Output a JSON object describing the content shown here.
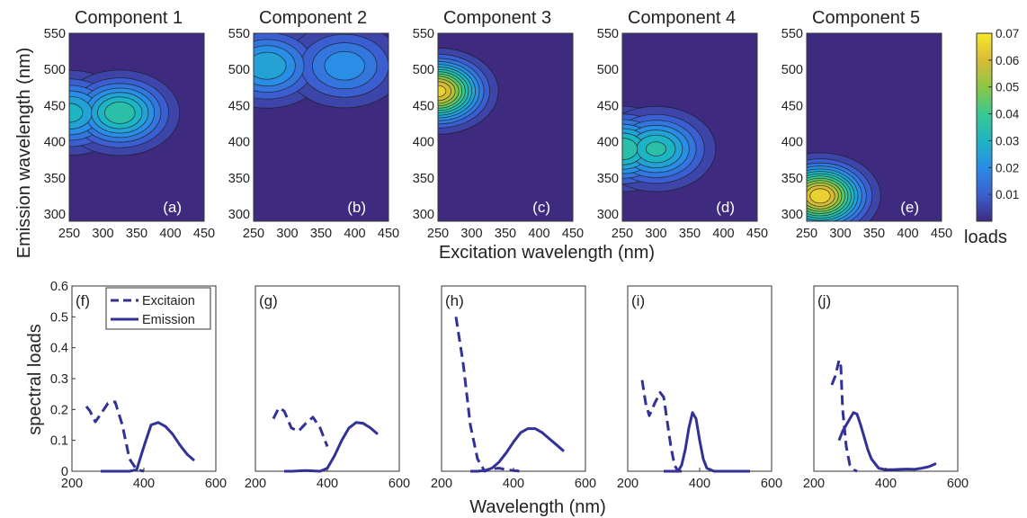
{
  "chart_data": [
    {
      "type": "heatmap",
      "subtype": "contour",
      "panels": [
        {
          "title": "Component 1",
          "label": "(a)",
          "peaks": [
            {
              "ex": 250,
              "em": 440,
              "value": 0.033
            },
            {
              "ex": 325,
              "em": 440,
              "value": 0.04
            }
          ]
        },
        {
          "title": "Component 2",
          "label": "(b)",
          "peaks": [
            {
              "ex": 270,
              "em": 505,
              "value": 0.03
            },
            {
              "ex": 385,
              "em": 505,
              "value": 0.024
            }
          ]
        },
        {
          "title": "Component 3",
          "label": "(c)",
          "peaks": [
            {
              "ex": 250,
              "em": 470,
              "value": 0.068
            }
          ]
        },
        {
          "title": "Component 4",
          "label": "(d)",
          "peaks": [
            {
              "ex": 250,
              "em": 390,
              "value": 0.04
            },
            {
              "ex": 300,
              "em": 390,
              "value": 0.037
            }
          ]
        },
        {
          "title": "Component 5",
          "label": "(e)",
          "peaks": [
            {
              "ex": 270,
              "em": 325,
              "value": 0.07
            }
          ]
        }
      ],
      "xlabel": "Excitation wavelength (nm)",
      "ylabel": "Emission wavelength (nm)",
      "xlim": [
        250,
        450
      ],
      "ylim": [
        290,
        550
      ],
      "xticks": [
        "250",
        "300",
        "350",
        "400",
        "450"
      ],
      "yticks": [
        "300",
        "350",
        "400",
        "450",
        "500",
        "550"
      ],
      "colorbar": {
        "label": "loads",
        "range": [
          0,
          0.07
        ],
        "ticks": [
          "0.01",
          "0.02",
          "0.03",
          "0.04",
          "0.05",
          "0.06",
          "0.07"
        ]
      },
      "colormap": [
        "#3e2b80",
        "#3b5fd1",
        "#2a8de6",
        "#1db5c3",
        "#38c991",
        "#8bc746",
        "#d9bb36",
        "#f7e82a"
      ],
      "background_color": "#3e2b80"
    },
    {
      "type": "line",
      "panels": [
        {
          "label": "(f)",
          "series": [
            {
              "name": "Excitaion",
              "x": [
                240,
                250,
                265,
                280,
                300,
                320,
                340,
                360,
                380,
                400
              ],
              "y": [
                0.21,
                0.195,
                0.16,
                0.185,
                0.22,
                0.225,
                0.15,
                0.04,
                0.005,
                0
              ]
            },
            {
              "name": "Emission",
              "x": [
                280,
                300,
                340,
                360,
                380,
                400,
                420,
                440,
                460,
                480,
                500,
                520,
                540
              ],
              "y": [
                0,
                0,
                0,
                0,
                0.005,
                0.08,
                0.15,
                0.158,
                0.145,
                0.12,
                0.085,
                0.055,
                0.035
              ]
            }
          ]
        },
        {
          "label": "(g)",
          "series": [
            {
              "name": "Excitaion",
              "x": [
                250,
                265,
                280,
                300,
                320,
                340,
                360,
                380,
                400
              ],
              "y": [
                0.17,
                0.205,
                0.195,
                0.14,
                0.13,
                0.155,
                0.175,
                0.14,
                0.08
              ]
            },
            {
              "name": "Emission",
              "x": [
                280,
                300,
                340,
                380,
                400,
                420,
                440,
                460,
                480,
                500,
                520,
                540
              ],
              "y": [
                0,
                0,
                0.002,
                0,
                0.01,
                0.05,
                0.1,
                0.14,
                0.158,
                0.155,
                0.14,
                0.12
              ]
            }
          ]
        },
        {
          "label": "(h)",
          "series": [
            {
              "name": "Excitaion",
              "x": [
                240,
                260,
                280,
                300,
                320,
                340,
                360,
                380,
                400,
                420
              ],
              "y": [
                0.5,
                0.35,
                0.15,
                0.04,
                0,
                0.008,
                0.01,
                0.005,
                0.002,
                0
              ]
            },
            {
              "name": "Emission",
              "x": [
                280,
                300,
                320,
                340,
                360,
                380,
                400,
                420,
                440,
                460,
                480,
                500,
                520,
                540
              ],
              "y": [
                0,
                0,
                0.002,
                0.01,
                0.03,
                0.06,
                0.095,
                0.125,
                0.138,
                0.138,
                0.125,
                0.105,
                0.085,
                0.065
              ]
            }
          ]
        },
        {
          "label": "(i)",
          "series": [
            {
              "name": "Excitaion",
              "x": [
                240,
                250,
                260,
                275,
                290,
                300,
                310,
                320,
                330,
                340,
                350
              ],
              "y": [
                0.295,
                0.22,
                0.18,
                0.22,
                0.255,
                0.24,
                0.16,
                0.08,
                0.02,
                0,
                0
              ]
            },
            {
              "name": "Emission",
              "x": [
                300,
                320,
                340,
                350,
                360,
                370,
                380,
                390,
                400,
                410,
                420,
                440,
                460,
                480,
                540
              ],
              "y": [
                0,
                0,
                0,
                0.02,
                0.07,
                0.14,
                0.19,
                0.17,
                0.1,
                0.04,
                0.01,
                0,
                0,
                0,
                0
              ]
            }
          ]
        },
        {
          "label": "(j)",
          "series": [
            {
              "name": "Excitaion",
              "x": [
                250,
                260,
                270,
                275,
                280,
                290,
                300,
                310,
                320
              ],
              "y": [
                0.28,
                0.31,
                0.36,
                0.34,
                0.2,
                0.08,
                0.02,
                0.005,
                0
              ]
            },
            {
              "name": "Emission",
              "x": [
                270,
                280,
                290,
                300,
                310,
                320,
                330,
                340,
                350,
                360,
                380,
                400,
                420,
                440,
                460,
                480,
                500,
                520,
                540
              ],
              "y": [
                0.1,
                0.13,
                0.15,
                0.17,
                0.19,
                0.185,
                0.15,
                0.11,
                0.07,
                0.04,
                0.01,
                0.005,
                0.005,
                0.006,
                0.007,
                0.006,
                0.01,
                0.015,
                0.025
              ]
            }
          ]
        }
      ],
      "xlabel": "Wavelength (nm)",
      "ylabel": "spectral loads",
      "xlim": [
        200,
        600
      ],
      "ylim": [
        0,
        0.6
      ],
      "xticks": [
        "200",
        "400",
        "600"
      ],
      "yticks": [
        "0",
        "0.1",
        "0.2",
        "0.3",
        "0.4",
        "0.5",
        "0.6"
      ],
      "legend": {
        "position": "top-left",
        "entries": [
          "Excitaion",
          "Emission"
        ]
      },
      "line_color": "#323296"
    }
  ]
}
